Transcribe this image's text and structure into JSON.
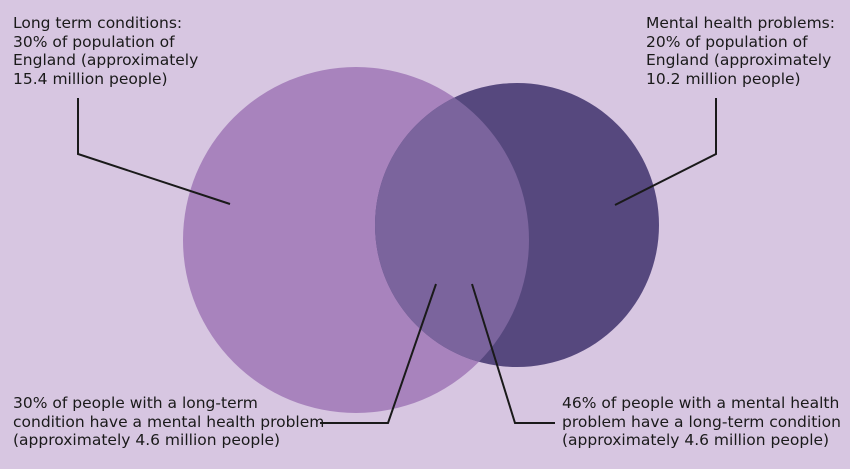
{
  "diagram": {
    "colors": {
      "background": "#d7c6e1",
      "long_term_circle": "#a883bd",
      "mental_health_circle": "#56487e",
      "overlap": "#7b649d",
      "leader_lines": "#1a1a1a"
    },
    "long_term_conditions": {
      "lines": [
        "Long term conditions:",
        "30% of population of",
        "England (approximately",
        "15.4 million people)"
      ]
    },
    "mental_health_problems": {
      "lines": [
        "Mental health problems:",
        "20% of population of",
        "England (approximately",
        "10.2 million people)"
      ]
    },
    "long_term_with_mental_health": {
      "lines": [
        "30% of people with a long-term",
        "condition have a mental health problem",
        "(approximately 4.6 million people)"
      ]
    },
    "mental_health_with_long_term": {
      "lines": [
        "46% of people with a mental health",
        "problem have a long-term condition",
        "(approximately 4.6 million people)"
      ]
    }
  }
}
